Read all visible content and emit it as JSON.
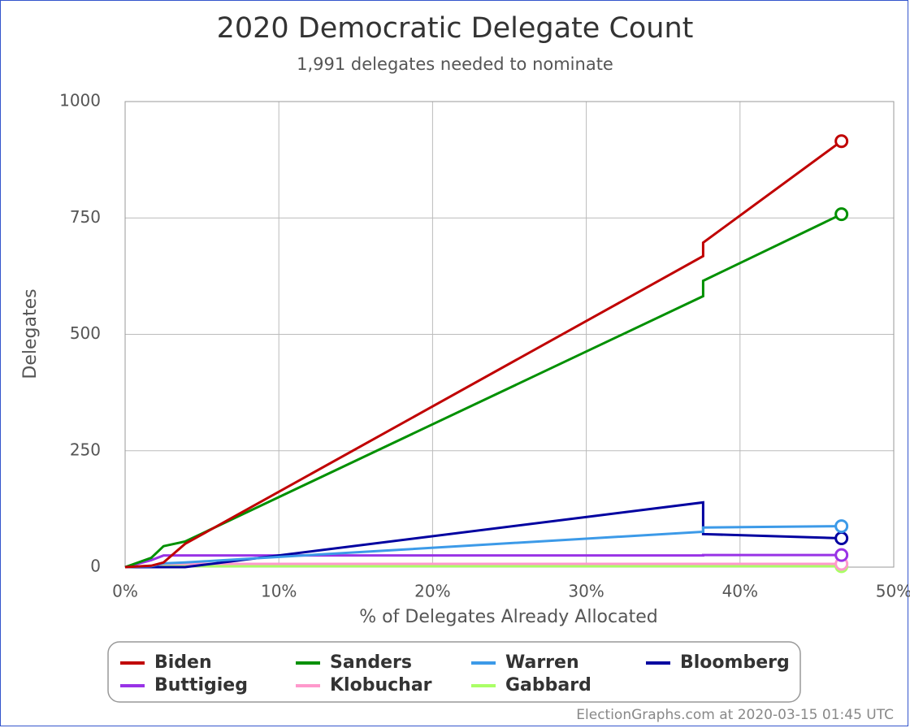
{
  "chart_data": {
    "type": "line",
    "title": "2020 Democratic Delegate Count",
    "subtitle": "1,991 delegates needed to nominate",
    "x_label": "% of Delegates Already Allocated",
    "y_label": "Delegates",
    "x": [
      0,
      1.7,
      2.5,
      3.9,
      37.6,
      37.6,
      46.6
    ],
    "series": [
      {
        "name": "Biden",
        "color": "#c00000",
        "values": [
          0,
          3,
          10,
          50,
          668,
          697,
          915
        ]
      },
      {
        "name": "Sanders",
        "color": "#009000",
        "values": [
          0,
          20,
          45,
          55,
          582,
          615,
          758
        ]
      },
      {
        "name": "Warren",
        "color": "#3c9ae8",
        "values": [
          0,
          2,
          8,
          10,
          76,
          85,
          88
        ]
      },
      {
        "name": "Bloomberg",
        "color": "#0000a0",
        "values": [
          0,
          0,
          0,
          0,
          139,
          71,
          62
        ]
      },
      {
        "name": "Buttigieg",
        "color": "#9933e6",
        "values": [
          0,
          15,
          25,
          25,
          25,
          26,
          26
        ]
      },
      {
        "name": "Klobuchar",
        "color": "#ff99cc",
        "values": [
          0,
          3,
          7,
          7,
          7,
          7,
          7
        ]
      },
      {
        "name": "Gabbard",
        "color": "#aaff66",
        "values": [
          0,
          1,
          2,
          2,
          2,
          2,
          2
        ]
      }
    ],
    "xlim": [
      0,
      50
    ],
    "xticks": [
      {
        "value": 0,
        "label": "0%"
      },
      {
        "value": 10,
        "label": "10%"
      },
      {
        "value": 20,
        "label": "20%"
      },
      {
        "value": 30,
        "label": "30%"
      },
      {
        "value": 40,
        "label": "40%"
      },
      {
        "value": 50,
        "label": "50%"
      }
    ],
    "ylim": [
      0,
      1000
    ],
    "yticks": [
      0,
      250,
      500,
      750,
      1000
    ],
    "grid": true,
    "legend": "bottom",
    "footer": "ElectionGraphs.com at 2020-03-15 01:45 UTC"
  }
}
